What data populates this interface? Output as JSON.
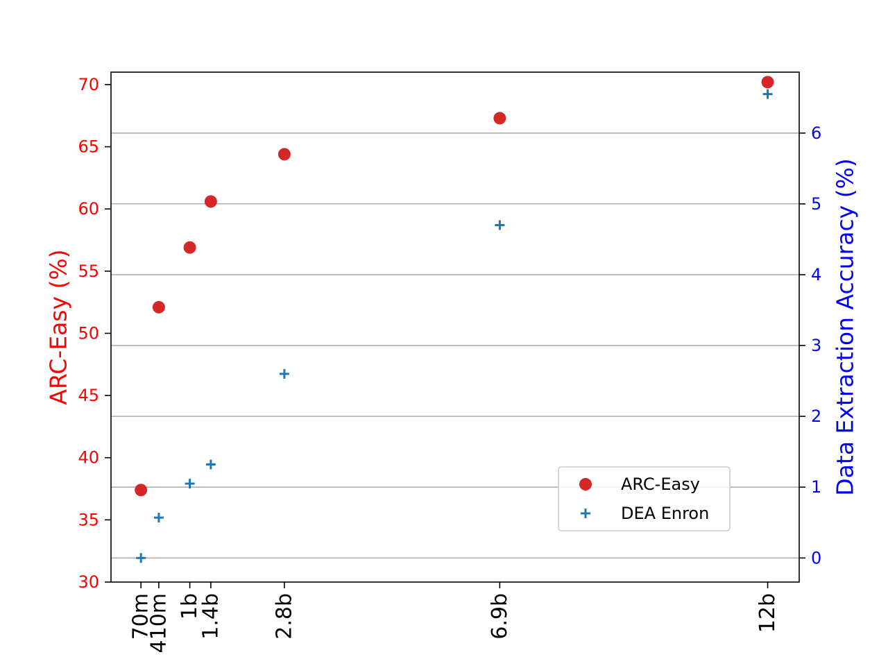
{
  "chart_data": {
    "type": "scatter",
    "x_tick_labels": [
      "70m",
      "410m",
      "1b",
      "1.4b",
      "2.8b",
      "6.9b",
      "12b"
    ],
    "x_params_billions": [
      0.07,
      0.41,
      1.0,
      1.4,
      2.8,
      6.9,
      12.0
    ],
    "xlim": [
      -0.5,
      12.6
    ],
    "left_axis": {
      "label": "ARC-Easy (%)",
      "color": "#ff0000",
      "ylim": [
        30,
        71
      ],
      "ticks": [
        30,
        35,
        40,
        45,
        50,
        55,
        60,
        65,
        70
      ]
    },
    "right_axis": {
      "label": "Data Extraction Accuracy (%)",
      "color": "#0000ff",
      "ylim": [
        -0.34,
        6.86
      ],
      "ticks": [
        0,
        1,
        2,
        3,
        4,
        5,
        6
      ],
      "grid": true
    },
    "series": [
      {
        "name": "ARC-Easy",
        "axis": "left",
        "marker": "circle",
        "color": "#d62728",
        "values": [
          37.4,
          52.1,
          56.9,
          60.6,
          64.4,
          67.3,
          70.2
        ]
      },
      {
        "name": "DEA Enron",
        "axis": "right",
        "marker": "plus",
        "color": "#1f77b4",
        "values": [
          0.0,
          0.57,
          1.05,
          1.32,
          2.6,
          4.7,
          6.55
        ]
      }
    ],
    "legend_placement": "lower-right"
  }
}
